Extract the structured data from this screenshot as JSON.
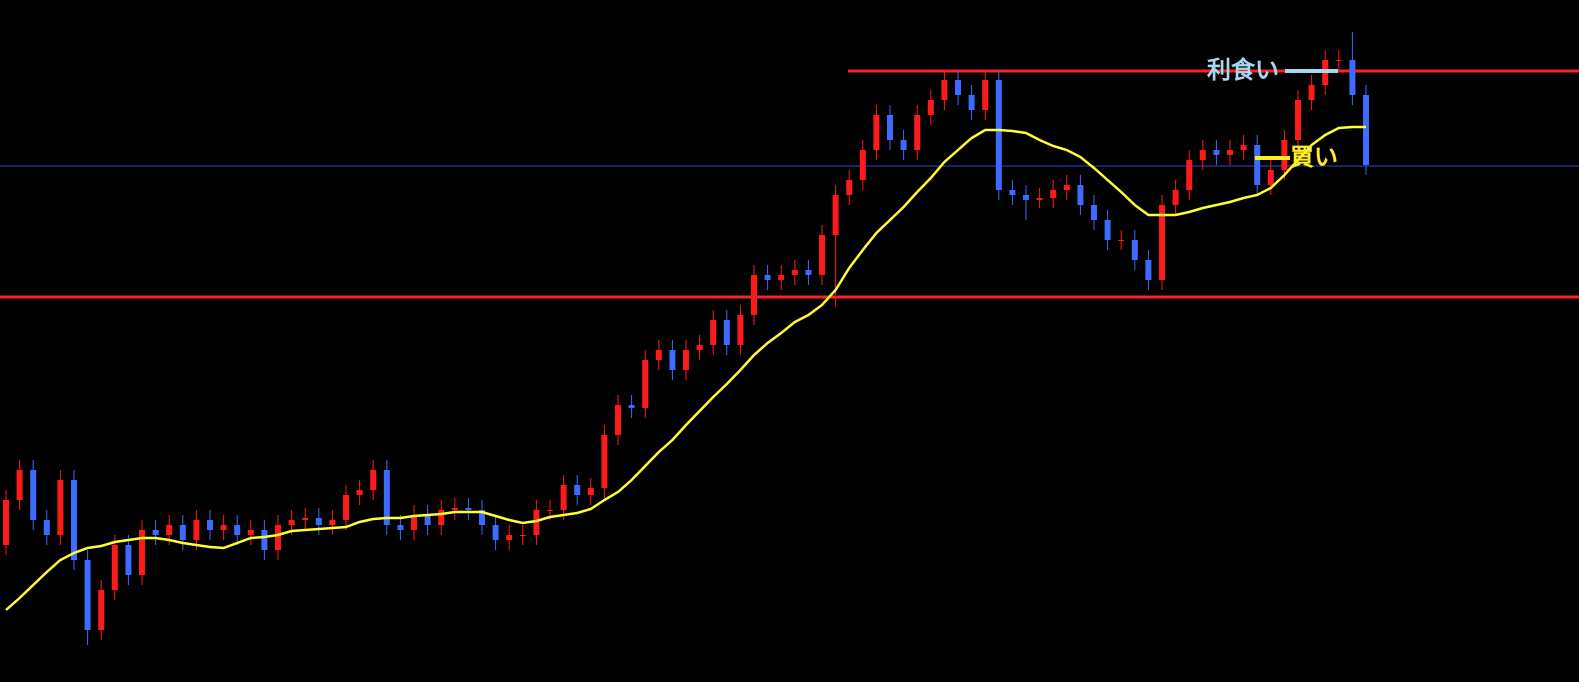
{
  "chart_data": {
    "type": "candlestick",
    "up_color": "#ff1a1a",
    "down_color": "#3d6bff",
    "ylim": [
      0,
      682
    ],
    "open": [
      137,
      182,
      212,
      162,
      147,
      202,
      122,
      52,
      92,
      137,
      107,
      152,
      147,
      157,
      142,
      162,
      152,
      157,
      147,
      152,
      132,
      157,
      162,
      164,
      157,
      162,
      187,
      192,
      212,
      157,
      152,
      167,
      157,
      172,
      174,
      172,
      157,
      142,
      147,
      147,
      172,
      172,
      197,
      187,
      194,
      247,
      277,
      274,
      322,
      332,
      312,
      332,
      337,
      362,
      337,
      367,
      407,
      402,
      407,
      412,
      407,
      447,
      487,
      502,
      532,
      567,
      542,
      532,
      567,
      582,
      602,
      587,
      572,
      602,
      492,
      487,
      482,
      484,
      492,
      497,
      477,
      462,
      442,
      442,
      422,
      402,
      477,
      492,
      522,
      532,
      527,
      532,
      537,
      497,
      512,
      542,
      582,
      597,
      622,
      622,
      587
    ],
    "high": [
      192,
      222,
      222,
      172,
      212,
      212,
      132,
      102,
      147,
      147,
      162,
      162,
      167,
      167,
      172,
      172,
      167,
      167,
      162,
      162,
      167,
      172,
      174,
      174,
      172,
      197,
      202,
      222,
      222,
      167,
      177,
      177,
      182,
      184,
      184,
      182,
      167,
      157,
      157,
      182,
      182,
      207,
      207,
      204,
      257,
      287,
      287,
      332,
      342,
      342,
      342,
      347,
      372,
      372,
      377,
      417,
      417,
      417,
      422,
      422,
      457,
      497,
      512,
      542,
      577,
      577,
      552,
      577,
      592,
      612,
      612,
      597,
      612,
      612,
      502,
      497,
      494,
      502,
      507,
      507,
      487,
      472,
      452,
      452,
      432,
      487,
      502,
      532,
      542,
      542,
      542,
      547,
      547,
      522,
      552,
      592,
      607,
      632,
      632,
      650,
      597
    ],
    "low": [
      127,
      172,
      152,
      137,
      137,
      112,
      37,
      42,
      82,
      97,
      97,
      137,
      137,
      132,
      132,
      142,
      142,
      137,
      137,
      122,
      122,
      147,
      152,
      147,
      147,
      152,
      177,
      182,
      147,
      142,
      142,
      147,
      147,
      162,
      162,
      147,
      132,
      132,
      137,
      137,
      162,
      162,
      177,
      177,
      184,
      237,
      264,
      264,
      312,
      302,
      302,
      322,
      327,
      327,
      327,
      357,
      392,
      392,
      397,
      397,
      397,
      375,
      477,
      492,
      522,
      532,
      522,
      522,
      557,
      572,
      577,
      562,
      562,
      482,
      477,
      462,
      474,
      474,
      482,
      467,
      452,
      432,
      432,
      412,
      392,
      392,
      467,
      482,
      512,
      517,
      517,
      522,
      487,
      487,
      502,
      532,
      572,
      587,
      612,
      577,
      507
    ],
    "close": [
      182,
      212,
      162,
      147,
      202,
      122,
      52,
      92,
      137,
      107,
      152,
      147,
      157,
      142,
      162,
      152,
      157,
      147,
      152,
      132,
      157,
      162,
      164,
      157,
      162,
      187,
      192,
      212,
      157,
      152,
      167,
      157,
      172,
      174,
      172,
      157,
      142,
      147,
      147,
      172,
      172,
      197,
      187,
      194,
      247,
      277,
      274,
      322,
      332,
      312,
      332,
      337,
      362,
      337,
      367,
      407,
      402,
      407,
      412,
      407,
      447,
      487,
      502,
      532,
      567,
      542,
      532,
      567,
      582,
      602,
      587,
      572,
      602,
      492,
      487,
      482,
      484,
      492,
      497,
      477,
      462,
      442,
      442,
      422,
      402,
      477,
      492,
      522,
      532,
      527,
      532,
      537,
      497,
      512,
      542,
      582,
      597,
      622,
      622,
      587,
      517
    ],
    "ma": {
      "color": "#ffff33",
      "values": [
        72,
        84,
        97,
        110,
        122,
        129,
        134,
        136,
        140,
        142,
        144,
        144,
        142,
        139,
        137,
        135,
        134,
        139,
        144,
        145,
        147,
        151,
        152,
        153,
        154,
        155,
        160,
        163,
        164,
        164,
        166,
        167,
        168,
        170,
        170,
        170,
        166,
        162,
        159,
        161,
        165,
        167,
        169,
        173,
        182,
        190,
        202,
        216,
        230,
        242,
        257,
        271,
        285,
        298,
        312,
        327,
        339,
        349,
        360,
        367,
        377,
        392,
        414,
        432,
        449,
        462,
        475,
        490,
        504,
        520,
        532,
        544,
        552,
        552,
        551,
        549,
        542,
        536,
        532,
        525,
        514,
        502,
        490,
        477,
        467,
        467,
        467,
        470,
        474,
        477,
        480,
        484,
        487,
        494,
        507,
        522,
        537,
        547,
        554,
        555,
        555
      ]
    },
    "hlines": [
      {
        "value": 611,
        "color": "#ff2020"
      },
      {
        "value": 385,
        "color": "#ff2020"
      },
      {
        "value": 516,
        "color": "#3344cc"
      }
    ],
    "annotations": [
      {
        "text": "利食い",
        "value": 611,
        "color": "#a8d8f0"
      },
      {
        "text": "買い",
        "value": 524,
        "color": "#ffee22"
      }
    ]
  }
}
